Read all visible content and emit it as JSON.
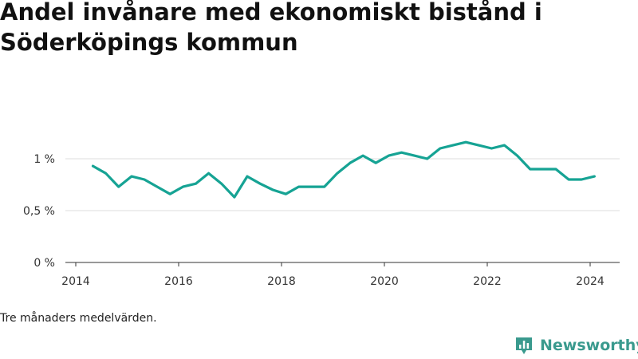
{
  "title": "Andel invånare med ekonomiskt bistånd i Söderköpings kommun",
  "footnote": "Tre månaders medelvärden.",
  "brand": {
    "name": "Newsworthy",
    "icon": "newsworthy-logo-icon",
    "color": "#3a9a8e"
  },
  "chart_data": {
    "type": "line",
    "title": "Andel invånare med ekonomiskt bistånd i Söderköpings kommun",
    "xlabel": "",
    "ylabel": "",
    "x_ticks": [
      "2014",
      "2016",
      "2018",
      "2020",
      "2022",
      "2024"
    ],
    "y_ticks": [
      "0 %",
      "0,5 %",
      "1 %"
    ],
    "xlim": [
      "2014-01-01",
      "2024-12-31"
    ],
    "ylim": [
      0,
      1.3
    ],
    "grid": "horizontal",
    "line_color": "#16a394",
    "series": [
      {
        "name": "",
        "x": [
          "2014-05",
          "2014-08",
          "2014-11",
          "2015-02",
          "2015-05",
          "2015-08",
          "2015-11",
          "2016-02",
          "2016-05",
          "2016-08",
          "2016-11",
          "2017-02",
          "2017-05",
          "2017-08",
          "2017-11",
          "2018-02",
          "2018-05",
          "2018-08",
          "2018-11",
          "2019-02",
          "2019-05",
          "2019-08",
          "2019-11",
          "2020-02",
          "2020-05",
          "2020-08",
          "2020-11",
          "2021-02",
          "2021-05",
          "2021-08",
          "2021-11",
          "2022-02",
          "2022-05",
          "2022-08",
          "2022-11",
          "2023-02",
          "2023-05",
          "2023-08",
          "2023-11",
          "2024-02"
        ],
        "values": [
          0.93,
          0.86,
          0.73,
          0.83,
          0.8,
          0.73,
          0.66,
          0.73,
          0.76,
          0.86,
          0.76,
          0.63,
          0.83,
          0.76,
          0.7,
          0.66,
          0.73,
          0.73,
          0.73,
          0.86,
          0.96,
          1.03,
          0.96,
          1.03,
          1.06,
          1.03,
          1.0,
          1.1,
          1.13,
          1.16,
          1.13,
          1.1,
          1.13,
          1.03,
          0.9,
          0.9,
          0.9,
          0.8,
          0.8,
          0.83
        ]
      }
    ]
  }
}
